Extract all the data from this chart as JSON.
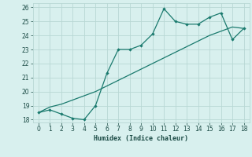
{
  "xlabel": "Humidex (Indice chaleur)",
  "x": [
    0,
    1,
    2,
    3,
    4,
    5,
    6,
    7,
    8,
    9,
    10,
    11,
    12,
    13,
    14,
    15,
    16,
    17,
    18
  ],
  "y_curve": [
    18.5,
    18.7,
    18.4,
    18.1,
    18.0,
    19.0,
    21.3,
    23.0,
    23.0,
    23.3,
    24.1,
    25.9,
    25.0,
    24.8,
    24.8,
    25.3,
    25.6,
    23.7,
    24.5
  ],
  "y_line": [
    18.5,
    18.9,
    19.1,
    19.4,
    19.7,
    20.0,
    20.4,
    20.8,
    21.2,
    21.6,
    22.0,
    22.4,
    22.8,
    23.2,
    23.6,
    24.0,
    24.3,
    24.6,
    24.5
  ],
  "ylim": [
    17.8,
    26.3
  ],
  "xlim": [
    -0.5,
    18.5
  ],
  "yticks": [
    18,
    19,
    20,
    21,
    22,
    23,
    24,
    25,
    26
  ],
  "xticks": [
    0,
    1,
    2,
    3,
    4,
    5,
    6,
    7,
    8,
    9,
    10,
    11,
    12,
    13,
    14,
    15,
    16,
    17,
    18
  ],
  "line_color": "#1a7a6e",
  "bg_color": "#d8f0ee",
  "grid_color": "#b8d8d4",
  "font_color": "#1a4a44",
  "tick_color": "#1a4a44"
}
